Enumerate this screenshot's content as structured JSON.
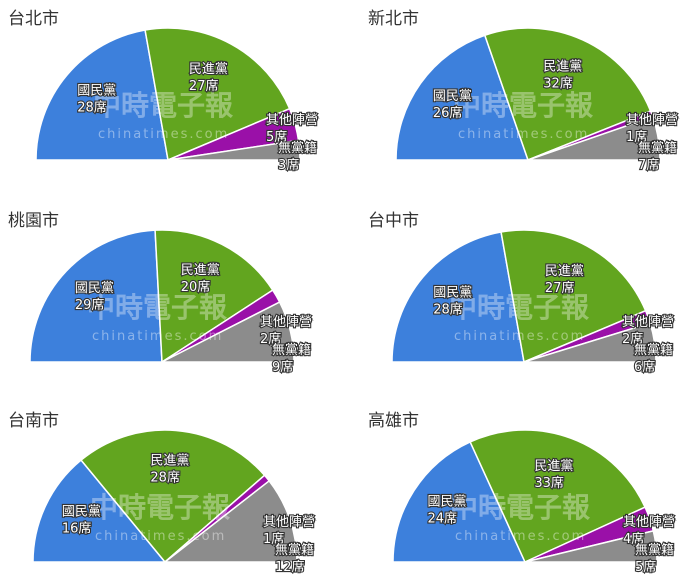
{
  "watermark": {
    "text": "中時電子報",
    "sub": "chinatimes.com"
  },
  "chart_data": [
    {
      "type": "pie",
      "title": "台北市",
      "categories": [
        "國民黨",
        "民進黨",
        "其他陣營",
        "無黨籍"
      ],
      "values": [
        28,
        27,
        5,
        3
      ],
      "unit": "席"
    },
    {
      "type": "pie",
      "title": "新北市",
      "categories": [
        "國民黨",
        "民進黨",
        "其他陣營",
        "無黨籍"
      ],
      "values": [
        26,
        32,
        1,
        7
      ],
      "unit": "席"
    },
    {
      "type": "pie",
      "title": "桃園市",
      "categories": [
        "國民黨",
        "民進黨",
        "其他陣營",
        "無黨籍"
      ],
      "values": [
        29,
        20,
        2,
        9
      ],
      "unit": "席"
    },
    {
      "type": "pie",
      "title": "台中市",
      "categories": [
        "國民黨",
        "民進黨",
        "其他陣營",
        "無黨籍"
      ],
      "values": [
        28,
        27,
        2,
        6
      ],
      "unit": "席"
    },
    {
      "type": "pie",
      "title": "台南市",
      "categories": [
        "國民黨",
        "民進黨",
        "其他陣營",
        "無黨籍"
      ],
      "values": [
        16,
        28,
        1,
        12
      ],
      "unit": "席"
    },
    {
      "type": "pie",
      "title": "高雄市",
      "categories": [
        "國民黨",
        "民進黨",
        "其他陣營",
        "無黨籍"
      ],
      "values": [
        24,
        33,
        4,
        5
      ],
      "unit": "席"
    }
  ],
  "colors": [
    "#3d80dc",
    "#62a51f",
    "#9a10a8",
    "#8c8c8c"
  ],
  "shape": "semicircle"
}
